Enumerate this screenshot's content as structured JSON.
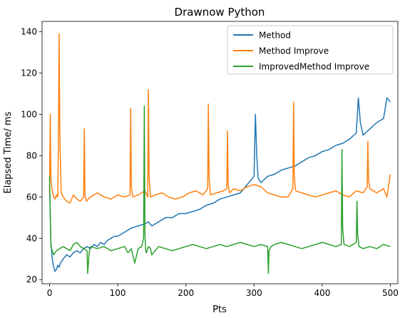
{
  "chart_data": {
    "type": "line",
    "title": "Drawnow Python",
    "xlabel": "Pts",
    "ylabel": "Elapsed Time/ ms",
    "xlim": [
      -11,
      511
    ],
    "ylim": [
      18,
      145
    ],
    "xticks": [
      0,
      100,
      200,
      300,
      400,
      500
    ],
    "yticks": [
      20,
      40,
      60,
      80,
      100,
      120,
      140
    ],
    "legend_position": "top-right",
    "grid": false,
    "series": [
      {
        "name": "Method",
        "color": "#1f77b4",
        "x": [
          0,
          2,
          4,
          6,
          8,
          10,
          12,
          14,
          16,
          18,
          20,
          25,
          30,
          35,
          40,
          45,
          50,
          55,
          60,
          65,
          70,
          75,
          80,
          85,
          90,
          95,
          100,
          110,
          120,
          130,
          140,
          145,
          150,
          160,
          170,
          180,
          190,
          200,
          210,
          220,
          230,
          240,
          250,
          260,
          270,
          280,
          290,
          300,
          302,
          304,
          306,
          310,
          320,
          330,
          340,
          350,
          360,
          370,
          380,
          390,
          400,
          410,
          420,
          430,
          440,
          450,
          453,
          456,
          460,
          470,
          480,
          490,
          495,
          500
        ],
        "y": [
          66,
          38,
          30,
          26,
          24,
          25,
          27,
          26,
          28,
          29,
          30,
          32,
          31,
          33,
          34,
          33,
          35,
          36,
          35,
          37,
          36,
          38,
          37,
          39,
          40,
          41,
          41,
          43,
          45,
          46,
          47,
          48,
          46,
          48,
          50,
          50,
          52,
          52,
          53,
          54,
          56,
          57,
          59,
          60,
          61,
          62,
          66,
          70,
          100,
          80,
          69,
          67,
          70,
          71,
          73,
          74,
          75,
          77,
          79,
          80,
          82,
          83,
          85,
          86,
          88,
          91,
          108,
          96,
          90,
          93,
          96,
          98,
          108,
          106
        ]
      },
      {
        "name": "Method Improve",
        "color": "#ff7f0e",
        "x": [
          0,
          1,
          2,
          4,
          6,
          8,
          10,
          12,
          13,
          14,
          15,
          17,
          20,
          25,
          30,
          35,
          40,
          45,
          50,
          51,
          52,
          54,
          60,
          70,
          80,
          90,
          100,
          110,
          118,
          119,
          120,
          122,
          130,
          140,
          144,
          145,
          146,
          148,
          155,
          165,
          175,
          185,
          195,
          205,
          215,
          225,
          232,
          233,
          234,
          236,
          245,
          255,
          260,
          261,
          262,
          264,
          270,
          280,
          290,
          300,
          310,
          320,
          330,
          340,
          350,
          357,
          358,
          359,
          361,
          370,
          380,
          390,
          400,
          410,
          420,
          430,
          440,
          450,
          460,
          466,
          467,
          468,
          470,
          480,
          490,
          495,
          500
        ],
        "y": [
          62,
          100,
          68,
          63,
          60,
          59,
          61,
          60,
          85,
          139,
          90,
          62,
          60,
          58,
          57,
          61,
          59,
          58,
          60,
          93,
          61,
          58,
          60,
          62,
          60,
          59,
          61,
          60,
          61,
          103,
          65,
          60,
          61,
          63,
          60,
          112,
          70,
          60,
          61,
          62,
          60,
          59,
          60,
          62,
          63,
          61,
          64,
          105,
          70,
          61,
          62,
          63,
          64,
          92,
          66,
          62,
          64,
          63,
          65,
          66,
          65,
          62,
          61,
          60,
          60,
          64,
          106,
          70,
          63,
          62,
          61,
          60,
          61,
          62,
          63,
          61,
          60,
          63,
          62,
          65,
          87,
          68,
          64,
          62,
          64,
          60,
          71
        ]
      },
      {
        "name": "ImprovedMethod Improve",
        "color": "#2ca02c",
        "x": [
          0,
          2,
          4,
          6,
          8,
          10,
          15,
          20,
          25,
          30,
          35,
          40,
          45,
          50,
          55,
          56,
          58,
          60,
          70,
          80,
          90,
          100,
          110,
          115,
          120,
          125,
          130,
          135,
          138,
          139,
          140,
          141,
          142,
          145,
          148,
          150,
          160,
          170,
          180,
          190,
          200,
          210,
          220,
          230,
          240,
          250,
          260,
          270,
          280,
          290,
          300,
          310,
          320,
          321,
          322,
          325,
          330,
          340,
          350,
          360,
          370,
          380,
          390,
          400,
          410,
          420,
          428,
          429,
          430,
          432,
          440,
          450,
          451,
          452,
          454,
          460,
          470,
          480,
          490,
          500
        ],
        "y": [
          70,
          36,
          34,
          32,
          33,
          34,
          35,
          36,
          35,
          34,
          37,
          38,
          36,
          35,
          34,
          23,
          33,
          36,
          35,
          36,
          34,
          35,
          36,
          33,
          35,
          28,
          35,
          36,
          40,
          104,
          42,
          34,
          33,
          36,
          35,
          32,
          36,
          35,
          34,
          35,
          36,
          37,
          36,
          35,
          36,
          37,
          36,
          37,
          38,
          37,
          36,
          37,
          36,
          23,
          34,
          36,
          37,
          38,
          37,
          36,
          35,
          36,
          37,
          38,
          37,
          36,
          37,
          83,
          45,
          37,
          36,
          38,
          58,
          42,
          36,
          35,
          36,
          35,
          37,
          36
        ]
      }
    ]
  }
}
